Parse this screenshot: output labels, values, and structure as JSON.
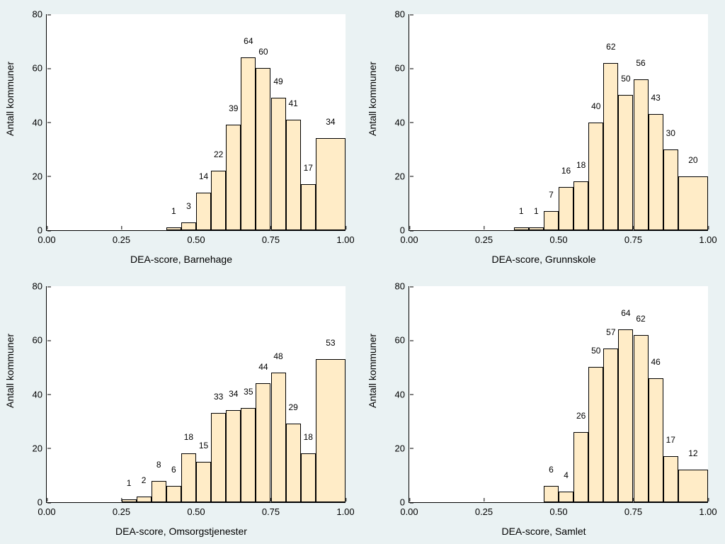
{
  "global": {
    "background_color": "#eaf2f3",
    "plot_background": "#ffffff",
    "bar_fill": "#ffecc7",
    "bar_border": "#000000",
    "axis_color": "#000000",
    "text_color": "#000000",
    "ylabel": "Antall kommuner",
    "label_fontsize": 14,
    "tick_fontsize": 13,
    "barlabel_fontsize": 12,
    "bin_width": 0.05
  },
  "panels": [
    {
      "xlabel": "DEA-score, Barnehage",
      "xlim": [
        0.0,
        1.0
      ],
      "xticks": [
        0.0,
        0.25,
        0.5,
        0.75,
        1.0
      ],
      "ylim": [
        0,
        80
      ],
      "yticks": [
        0,
        20,
        40,
        60,
        80
      ],
      "bars": [
        {
          "x": 0.425,
          "v": 1,
          "label": "1"
        },
        {
          "x": 0.475,
          "v": 3,
          "label": "3"
        },
        {
          "x": 0.525,
          "v": 14,
          "label": "14"
        },
        {
          "x": 0.575,
          "v": 22,
          "label": "22"
        },
        {
          "x": 0.625,
          "v": 39,
          "label": "39"
        },
        {
          "x": 0.675,
          "v": 64,
          "label": "64"
        },
        {
          "x": 0.725,
          "v": 60,
          "label": "60"
        },
        {
          "x": 0.775,
          "v": 49,
          "label": "49"
        },
        {
          "x": 0.825,
          "v": 41,
          "label": "41"
        },
        {
          "x": 0.875,
          "v": 17,
          "label": "17"
        },
        {
          "x": 0.95,
          "v": 34,
          "label": "34",
          "w": 0.1
        }
      ]
    },
    {
      "xlabel": "DEA-score, Grunnskole",
      "xlim": [
        0.0,
        1.0
      ],
      "xticks": [
        0.0,
        0.25,
        0.5,
        0.75,
        1.0
      ],
      "ylim": [
        0,
        80
      ],
      "yticks": [
        0,
        20,
        40,
        60,
        80
      ],
      "bars": [
        {
          "x": 0.375,
          "v": 1,
          "label": "1"
        },
        {
          "x": 0.425,
          "v": 1,
          "label": "1"
        },
        {
          "x": 0.475,
          "v": 7,
          "label": "7"
        },
        {
          "x": 0.525,
          "v": 16,
          "label": "16"
        },
        {
          "x": 0.575,
          "v": 18,
          "label": "18"
        },
        {
          "x": 0.625,
          "v": 40,
          "label": "40"
        },
        {
          "x": 0.675,
          "v": 62,
          "label": "62"
        },
        {
          "x": 0.725,
          "v": 50,
          "label": "50"
        },
        {
          "x": 0.775,
          "v": 56,
          "label": "56"
        },
        {
          "x": 0.825,
          "v": 43,
          "label": "43"
        },
        {
          "x": 0.875,
          "v": 30,
          "label": "30"
        },
        {
          "x": 0.95,
          "v": 20,
          "label": "20",
          "w": 0.1
        }
      ]
    },
    {
      "xlabel": "DEA-score, Omsorgstjenester",
      "xlim": [
        0.0,
        1.0
      ],
      "xticks": [
        0.0,
        0.25,
        0.5,
        0.75,
        1.0
      ],
      "ylim": [
        0,
        80
      ],
      "yticks": [
        0,
        20,
        40,
        60,
        80
      ],
      "bars": [
        {
          "x": 0.275,
          "v": 1,
          "label": "1"
        },
        {
          "x": 0.325,
          "v": 2,
          "label": "2"
        },
        {
          "x": 0.375,
          "v": 8,
          "label": "8"
        },
        {
          "x": 0.425,
          "v": 6,
          "label": "6"
        },
        {
          "x": 0.475,
          "v": 18,
          "label": "18"
        },
        {
          "x": 0.525,
          "v": 15,
          "label": "15"
        },
        {
          "x": 0.575,
          "v": 33,
          "label": "33"
        },
        {
          "x": 0.625,
          "v": 34,
          "label": "34"
        },
        {
          "x": 0.675,
          "v": 35,
          "label": "35"
        },
        {
          "x": 0.725,
          "v": 44,
          "label": "44"
        },
        {
          "x": 0.775,
          "v": 48,
          "label": "48"
        },
        {
          "x": 0.825,
          "v": 29,
          "label": "29"
        },
        {
          "x": 0.875,
          "v": 18,
          "label": "18"
        },
        {
          "x": 0.95,
          "v": 53,
          "label": "53",
          "w": 0.1
        }
      ]
    },
    {
      "xlabel": "DEA-score, Samlet",
      "xlim": [
        0.0,
        1.0
      ],
      "xticks": [
        0.0,
        0.25,
        0.5,
        0.75,
        1.0
      ],
      "ylim": [
        0,
        80
      ],
      "yticks": [
        0,
        20,
        40,
        60,
        80
      ],
      "bars": [
        {
          "x": 0.475,
          "v": 6,
          "label": "6"
        },
        {
          "x": 0.525,
          "v": 4,
          "label": "4"
        },
        {
          "x": 0.575,
          "v": 26,
          "label": "26"
        },
        {
          "x": 0.625,
          "v": 50,
          "label": "50"
        },
        {
          "x": 0.675,
          "v": 57,
          "label": "57"
        },
        {
          "x": 0.725,
          "v": 64,
          "label": "64"
        },
        {
          "x": 0.775,
          "v": 62,
          "label": "62"
        },
        {
          "x": 0.825,
          "v": 46,
          "label": "46"
        },
        {
          "x": 0.875,
          "v": 17,
          "label": "17"
        },
        {
          "x": 0.95,
          "v": 12,
          "label": "12",
          "w": 0.1
        }
      ]
    }
  ]
}
